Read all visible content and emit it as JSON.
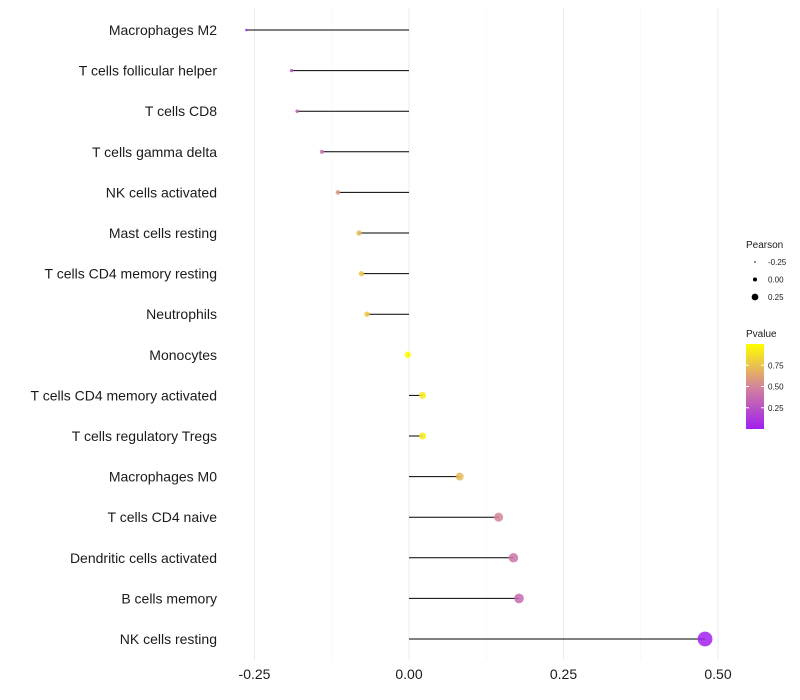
{
  "chart_data": {
    "type": "lollipop",
    "title": "",
    "xlabel": "",
    "ylabel": "",
    "xlim": [
      -0.3,
      0.52
    ],
    "x_ticks": [
      -0.25,
      0.0,
      0.25,
      0.5
    ],
    "x_tick_labels": [
      "-0.25",
      "0.00",
      "0.25",
      "0.50"
    ],
    "grid": true,
    "categories": [
      "Macrophages M2",
      "T cells follicular helper",
      "T cells CD8",
      "T cells gamma delta",
      "NK cells activated",
      "Mast cells resting",
      "T cells CD4 memory resting",
      "Neutrophils",
      "Monocytes",
      "T cells CD4 memory activated",
      "T cells regulatory  Tregs ",
      "Macrophages M0",
      "T cells CD4 naive",
      "Dendritic cells activated",
      "B cells memory",
      "NK cells resting"
    ],
    "pearson": [
      -0.263,
      -0.19,
      -0.181,
      -0.141,
      -0.115,
      -0.081,
      -0.077,
      -0.068,
      -0.002,
      0.022,
      0.022,
      0.082,
      0.145,
      0.169,
      0.178,
      0.479
    ],
    "pvalue": [
      0.02,
      0.26,
      0.3,
      0.4,
      0.58,
      0.72,
      0.76,
      0.78,
      0.99,
      0.92,
      0.92,
      0.72,
      0.5,
      0.42,
      0.37,
      0.01
    ],
    "size_legend": {
      "title": "Pearson",
      "values": [
        -0.25,
        0.0,
        0.25
      ],
      "labels": [
        "-0.25",
        "0.00",
        "0.25"
      ]
    },
    "color_legend": {
      "title": "Pvalue",
      "range": [
        0.0,
        1.0
      ],
      "ticks": [
        0.25,
        0.5,
        0.75
      ],
      "tick_labels": [
        "0.25",
        "0.50",
        "0.75"
      ],
      "low_color": "#a020f0",
      "mid_color": "#d4849a",
      "high_color": "#ffff00"
    },
    "legend_position": "right"
  }
}
